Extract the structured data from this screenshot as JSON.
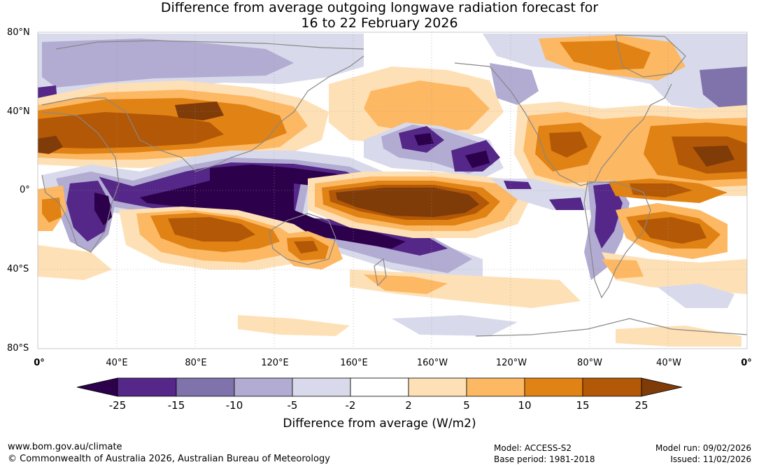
{
  "title_line1": "Difference from average outgoing longwave radiation forecast for",
  "title_line2": "16 to 22 February 2026",
  "colors": {
    "neg_25": "#2d004b",
    "neg_15_25": "#542788",
    "neg_10_15": "#8073ac",
    "neg_5_10": "#b2abd2",
    "neg_2_5": "#d8daeb",
    "neutral": "#ffffff",
    "pos_2_5": "#fee0b6",
    "pos_5_10": "#fdb863",
    "pos_10_15": "#e08214",
    "pos_15_25": "#b35806",
    "pos_25": "#7f3b08",
    "land_outline": "#888888",
    "grid": "#999999"
  },
  "map": {
    "lat_labels": [
      "80°N",
      "40°N",
      "0°",
      "40°S",
      "80°S"
    ],
    "lon_labels": [
      "0°",
      "40°E",
      "80°E",
      "120°E",
      "160°E",
      "160°W",
      "120°W",
      "80°W",
      "40°W",
      "0°"
    ]
  },
  "colorbar": {
    "ticks": [
      "-25",
      "-15",
      "-10",
      "-5",
      "-2",
      "2",
      "5",
      "10",
      "15",
      "25"
    ],
    "title": "Difference from average (W/m2)"
  },
  "footer": {
    "website": "www.bom.gov.au/climate",
    "copyright": "© Commonwealth of Australia 2026, Australian Bureau of Meteorology",
    "model": "Model: ACCESS-S2",
    "base_period": "Base period: 1981-2018",
    "model_run": "Model run: 09/02/2026",
    "issued": "Issued: 11/02/2026"
  }
}
